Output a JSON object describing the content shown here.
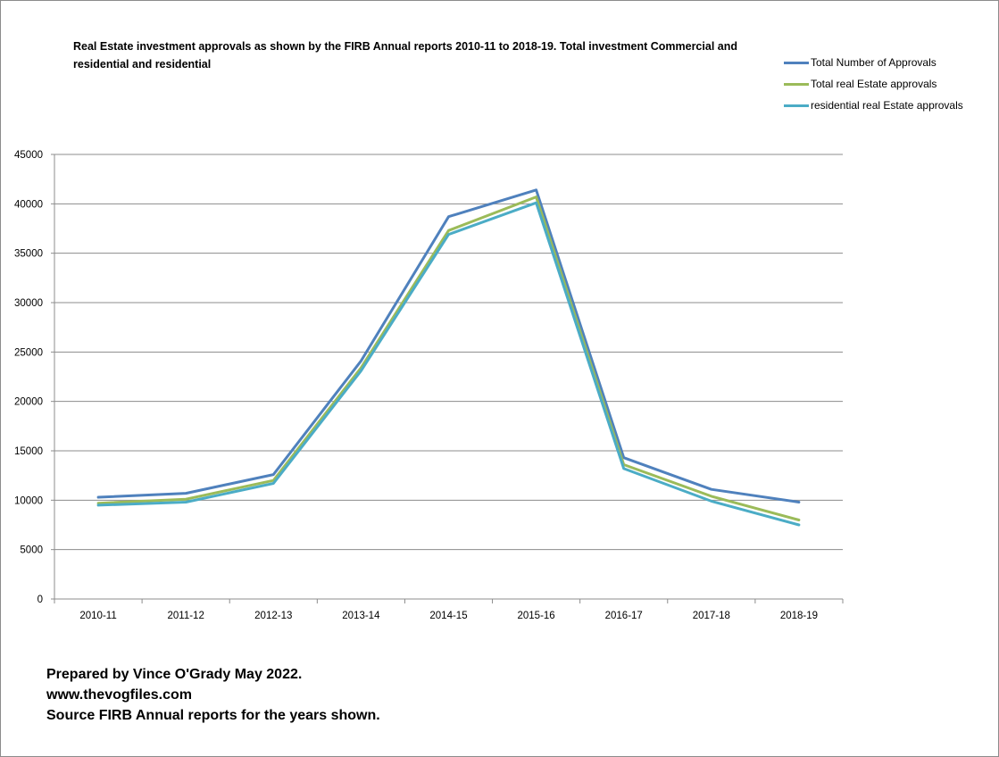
{
  "chart_data": {
    "type": "line",
    "title": "Real Estate investment approvals  as shown by the FIRB Annual reports 2010-11  to 2018-19.  Total investment Commercial and residential and residential",
    "xlabel": "",
    "ylabel": "",
    "categories": [
      "2010-11",
      "2011-12",
      "2012-13",
      "2013-14",
      "2014-15",
      "2015-16",
      "2016-17",
      "2017-18",
      "2018-19"
    ],
    "ylim": [
      0,
      45000
    ],
    "yticks": [
      0,
      5000,
      10000,
      15000,
      20000,
      25000,
      30000,
      35000,
      40000,
      45000
    ],
    "grid": true,
    "legend_position": "top-right",
    "series": [
      {
        "name": "Total Number of Approvals",
        "color": "#4f81bd",
        "values": [
          10300,
          10700,
          12600,
          24100,
          38700,
          41400,
          14300,
          11100,
          9800
        ]
      },
      {
        "name": "Total real Estate  approvals",
        "color": "#9bbb59",
        "values": [
          9700,
          10100,
          12000,
          23400,
          37300,
          40700,
          13600,
          10400,
          8000
        ]
      },
      {
        "name": "residential real Estate  approvals",
        "color": "#4bacc6",
        "values": [
          9500,
          9800,
          11700,
          23100,
          36900,
          40100,
          13200,
          9900,
          7500
        ]
      }
    ]
  },
  "footer": {
    "line1": "Prepared by Vince O'Grady May 2022.",
    "line2": "www.thevogfiles.com",
    "line3": "Source FIRB Annual reports for the years shown."
  }
}
